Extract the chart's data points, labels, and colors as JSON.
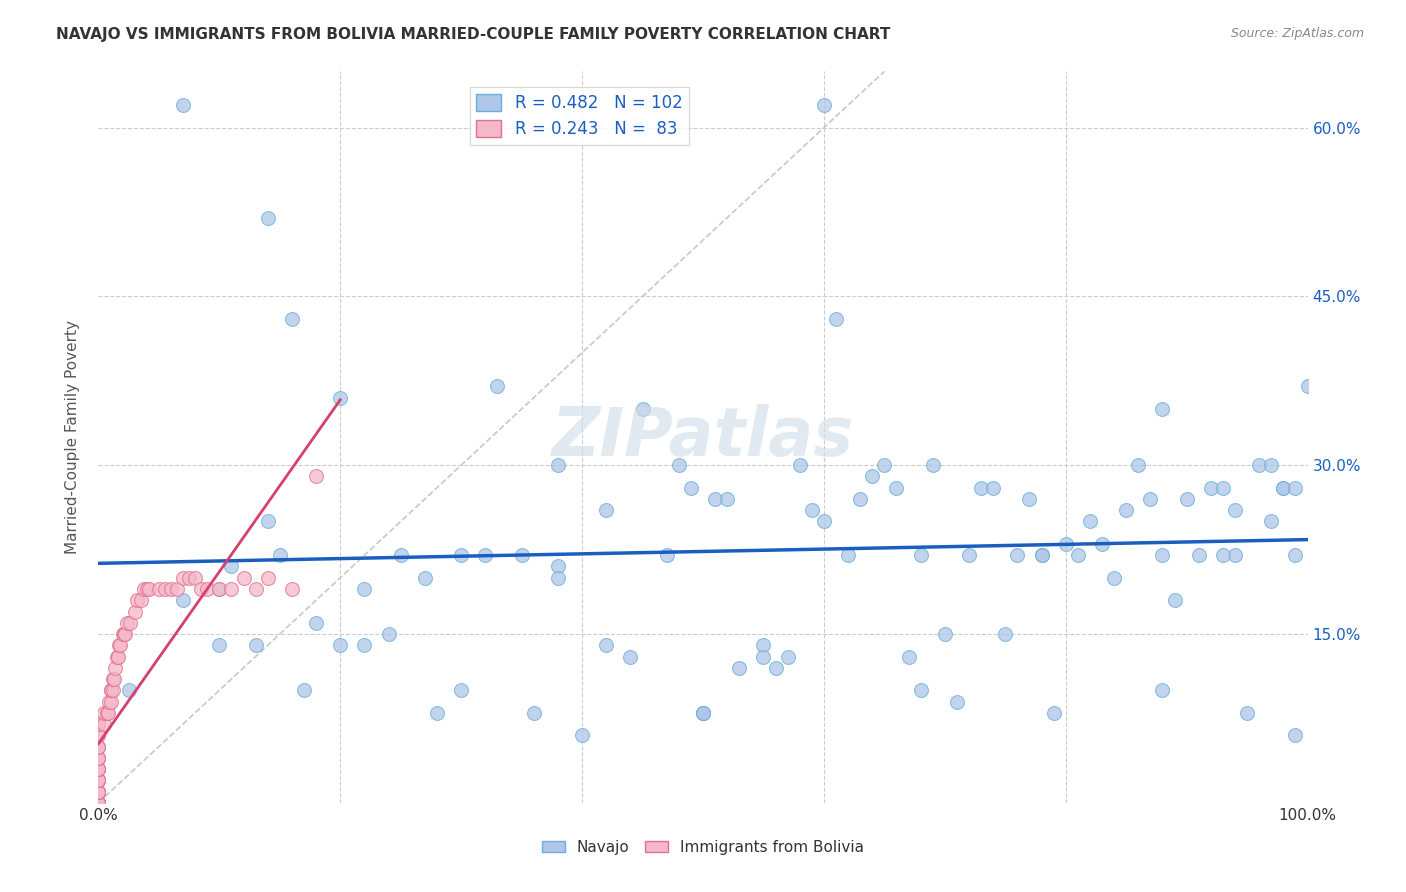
{
  "title": "NAVAJO VS IMMIGRANTS FROM BOLIVIA MARRIED-COUPLE FAMILY POVERTY CORRELATION CHART",
  "source": "Source: ZipAtlas.com",
  "ylabel": "Married-Couple Family Poverty",
  "xlim": [
    0,
    1.0
  ],
  "ylim": [
    0,
    0.65
  ],
  "navajo_color": "#aec6e8",
  "navajo_edge_color": "#6baed6",
  "bolivia_color": "#f4b8c8",
  "bolivia_edge_color": "#e07090",
  "navajo_line_color": "#1a5fbf",
  "bolivia_line_color": "#d44070",
  "diagonal_color": "#c8c8c8",
  "watermark": "ZIPatlas",
  "watermark_color": "#d0dce8",
  "grid_color": "#cccccc",
  "background_color": "#ffffff",
  "navajo_R": 0.482,
  "navajo_N": 102,
  "bolivia_R": 0.243,
  "bolivia_N": 83,
  "navajo_x": [
    0.025,
    0.07,
    0.1,
    0.1,
    0.11,
    0.13,
    0.14,
    0.15,
    0.16,
    0.17,
    0.18,
    0.2,
    0.2,
    0.22,
    0.22,
    0.24,
    0.25,
    0.27,
    0.28,
    0.3,
    0.3,
    0.32,
    0.33,
    0.35,
    0.36,
    0.38,
    0.38,
    0.4,
    0.42,
    0.44,
    0.45,
    0.47,
    0.48,
    0.49,
    0.5,
    0.5,
    0.51,
    0.52,
    0.53,
    0.55,
    0.56,
    0.57,
    0.58,
    0.59,
    0.6,
    0.61,
    0.62,
    0.63,
    0.64,
    0.65,
    0.66,
    0.67,
    0.68,
    0.69,
    0.7,
    0.71,
    0.72,
    0.73,
    0.74,
    0.75,
    0.76,
    0.77,
    0.78,
    0.79,
    0.8,
    0.81,
    0.82,
    0.83,
    0.84,
    0.85,
    0.86,
    0.87,
    0.88,
    0.88,
    0.89,
    0.9,
    0.91,
    0.92,
    0.93,
    0.94,
    0.94,
    0.95,
    0.96,
    0.97,
    0.97,
    0.98,
    0.98,
    0.99,
    0.99,
    1.0,
    0.14,
    0.07,
    0.6,
    0.5,
    0.42,
    0.38,
    0.55,
    0.68,
    0.78,
    0.88,
    0.93,
    0.99
  ],
  "navajo_y": [
    0.1,
    0.18,
    0.19,
    0.14,
    0.21,
    0.14,
    0.25,
    0.22,
    0.43,
    0.1,
    0.16,
    0.36,
    0.14,
    0.14,
    0.19,
    0.15,
    0.22,
    0.2,
    0.08,
    0.22,
    0.1,
    0.22,
    0.37,
    0.22,
    0.08,
    0.21,
    0.3,
    0.06,
    0.14,
    0.13,
    0.35,
    0.22,
    0.3,
    0.28,
    0.08,
    0.08,
    0.27,
    0.27,
    0.12,
    0.14,
    0.12,
    0.13,
    0.3,
    0.26,
    0.25,
    0.43,
    0.22,
    0.27,
    0.29,
    0.3,
    0.28,
    0.13,
    0.22,
    0.3,
    0.15,
    0.09,
    0.22,
    0.28,
    0.28,
    0.15,
    0.22,
    0.27,
    0.22,
    0.08,
    0.23,
    0.22,
    0.25,
    0.23,
    0.2,
    0.26,
    0.3,
    0.27,
    0.22,
    0.35,
    0.18,
    0.27,
    0.22,
    0.28,
    0.28,
    0.26,
    0.22,
    0.08,
    0.3,
    0.3,
    0.25,
    0.28,
    0.28,
    0.22,
    0.28,
    0.37,
    0.52,
    0.62,
    0.62,
    0.08,
    0.26,
    0.2,
    0.13,
    0.1,
    0.22,
    0.1,
    0.22,
    0.06
  ],
  "bolivia_x": [
    0.0,
    0.0,
    0.0,
    0.0,
    0.0,
    0.0,
    0.0,
    0.0,
    0.0,
    0.0,
    0.0,
    0.0,
    0.0,
    0.0,
    0.0,
    0.0,
    0.0,
    0.0,
    0.0,
    0.0,
    0.0,
    0.0,
    0.0,
    0.0,
    0.0,
    0.0,
    0.0,
    0.0,
    0.0,
    0.0,
    0.0,
    0.0,
    0.0,
    0.0,
    0.0,
    0.0,
    0.0,
    0.0,
    0.0,
    0.0,
    0.005,
    0.005,
    0.007,
    0.008,
    0.009,
    0.01,
    0.01,
    0.01,
    0.012,
    0.012,
    0.013,
    0.014,
    0.015,
    0.016,
    0.017,
    0.018,
    0.02,
    0.021,
    0.022,
    0.024,
    0.026,
    0.03,
    0.032,
    0.035,
    0.038,
    0.04,
    0.042,
    0.05,
    0.055,
    0.06,
    0.065,
    0.07,
    0.075,
    0.08,
    0.085,
    0.09,
    0.1,
    0.11,
    0.12,
    0.13,
    0.14,
    0.16,
    0.18
  ],
  "bolivia_y": [
    0.0,
    0.0,
    0.0,
    0.0,
    0.0,
    0.0,
    0.0,
    0.0,
    0.0,
    0.0,
    0.0,
    0.0,
    0.0,
    0.0,
    0.0,
    0.01,
    0.01,
    0.01,
    0.01,
    0.01,
    0.01,
    0.02,
    0.02,
    0.02,
    0.02,
    0.02,
    0.03,
    0.03,
    0.03,
    0.03,
    0.04,
    0.04,
    0.04,
    0.05,
    0.05,
    0.05,
    0.06,
    0.06,
    0.07,
    0.07,
    0.07,
    0.08,
    0.08,
    0.08,
    0.09,
    0.09,
    0.1,
    0.1,
    0.1,
    0.11,
    0.11,
    0.12,
    0.13,
    0.13,
    0.14,
    0.14,
    0.15,
    0.15,
    0.15,
    0.16,
    0.16,
    0.17,
    0.18,
    0.18,
    0.19,
    0.19,
    0.19,
    0.19,
    0.19,
    0.19,
    0.19,
    0.2,
    0.2,
    0.2,
    0.19,
    0.19,
    0.19,
    0.19,
    0.2,
    0.19,
    0.2,
    0.19,
    0.29
  ]
}
